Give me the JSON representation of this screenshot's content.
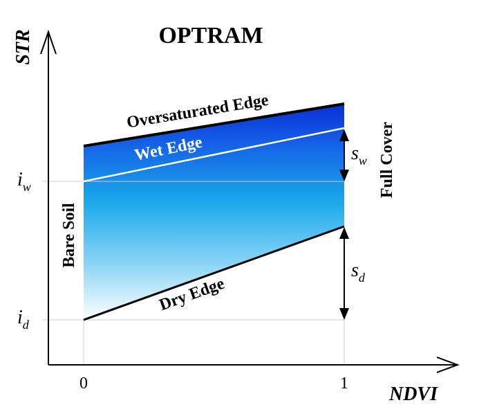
{
  "title": "OPTRAM",
  "axes": {
    "y_label": "STR",
    "x_label": "NDVI",
    "x_tick_0": "0",
    "x_tick_1": "1"
  },
  "intercepts": {
    "i_w": {
      "base": "i",
      "sub": "w"
    },
    "i_d": {
      "base": "i",
      "sub": "d"
    }
  },
  "slopes": {
    "s_w": {
      "base": "s",
      "sub": "w"
    },
    "s_d": {
      "base": "s",
      "sub": "d"
    }
  },
  "edges": {
    "oversaturated": "Oversaturated Edge",
    "wet": "Wet Edge",
    "dry": "Dry Edge"
  },
  "zones": {
    "bare_soil": "Bare Soil",
    "full_cover": "Full Cover"
  },
  "colors": {
    "gradient_top": "#0a2fd6",
    "gradient_mid": "#1aa8ea",
    "gradient_bottom": "#ffffff",
    "line": "#000000",
    "wet_edge_line": "#ffffff",
    "guide": "#cccccc"
  }
}
